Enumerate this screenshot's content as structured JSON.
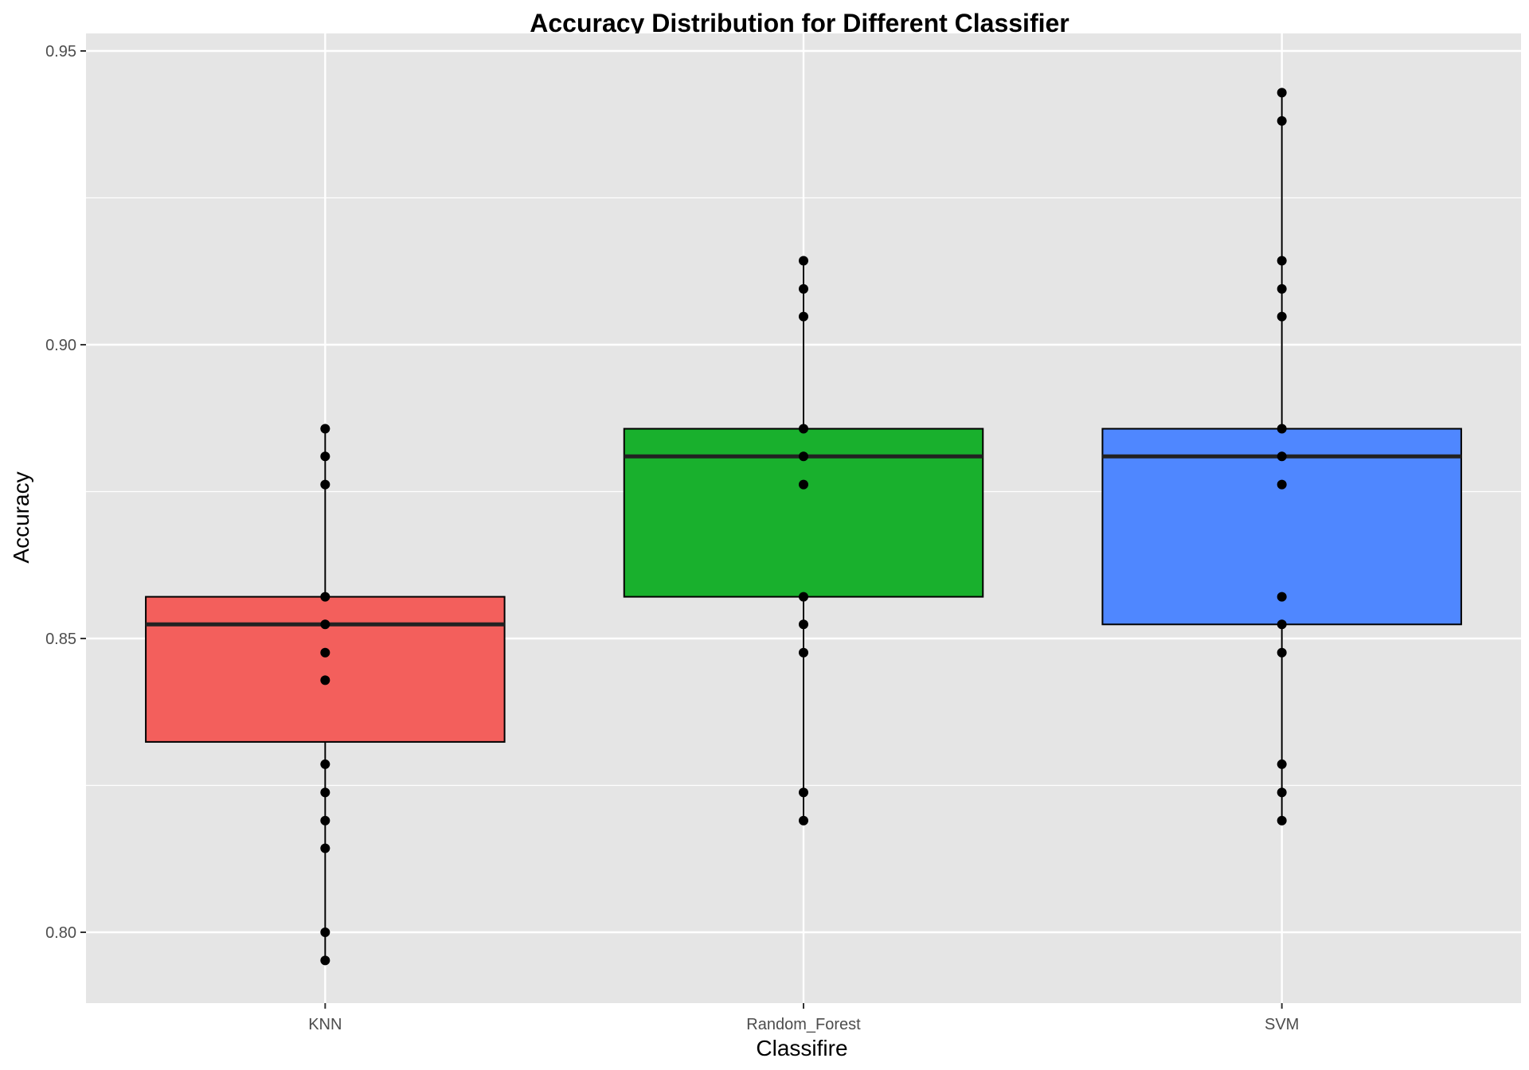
{
  "chart_data": {
    "type": "box",
    "title": "Accuracy Distribution for Different Classifier",
    "xlabel": "Classifire",
    "ylabel": "Accuracy",
    "ylim": [
      0.788,
      0.95
    ],
    "y_ticks": [
      0.8,
      0.85,
      0.9,
      0.95
    ],
    "y_tick_labels": [
      "0.80",
      "0.85",
      "0.90",
      "0.95"
    ],
    "grid": true,
    "panel_background": "#e5e5e5",
    "grid_color": "#ffffff",
    "categories": [
      "KNN",
      "Random_Forest",
      "SVM"
    ],
    "boxes": [
      {
        "name": "KNN",
        "fill": "#f35f5c",
        "whisker_low": 0.7952,
        "q1": 0.8324,
        "median": 0.8524,
        "q3": 0.8571,
        "whisker_high": 0.8857,
        "points": [
          0.8857,
          0.881,
          0.8762,
          0.8571,
          0.8524,
          0.8476,
          0.8429,
          0.8286,
          0.8238,
          0.819,
          0.8143,
          0.8,
          0.7952
        ]
      },
      {
        "name": "Random_Forest",
        "fill": "#19b02d",
        "whisker_low": 0.819,
        "q1": 0.8571,
        "median": 0.881,
        "q3": 0.8857,
        "whisker_high": 0.9143,
        "points": [
          0.9143,
          0.9095,
          0.9048,
          0.8857,
          0.881,
          0.8762,
          0.8571,
          0.8524,
          0.8476,
          0.8238,
          0.819
        ]
      },
      {
        "name": "SVM",
        "fill": "#4f87ff",
        "whisker_low": 0.819,
        "q1": 0.8524,
        "median": 0.881,
        "q3": 0.8857,
        "whisker_high": 0.9429,
        "points": [
          0.9429,
          0.9381,
          0.9143,
          0.9095,
          0.9048,
          0.8857,
          0.881,
          0.8762,
          0.8571,
          0.8524,
          0.8476,
          0.8286,
          0.8238,
          0.819
        ]
      }
    ]
  }
}
